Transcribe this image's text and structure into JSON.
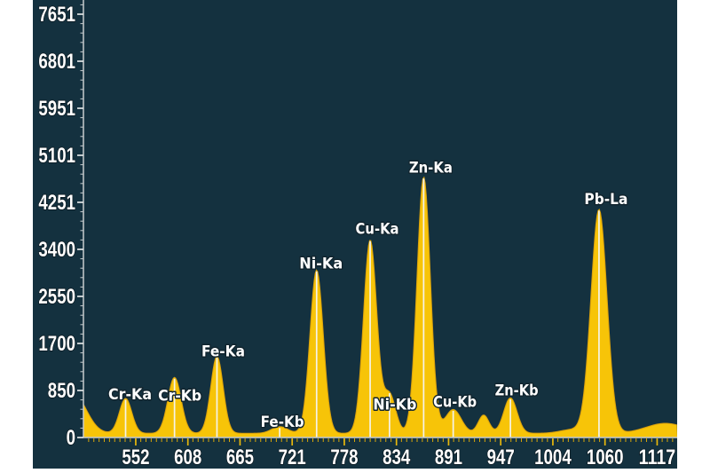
{
  "chart_data": {
    "type": "area",
    "description": "X-ray fluorescence energy spectrum with labeled element emission peaks",
    "x_tick_labels": [
      "552",
      "608",
      "665",
      "721",
      "778",
      "834",
      "891",
      "947",
      "1004",
      "1060",
      "1117"
    ],
    "y_tick_labels": [
      "0",
      "850",
      "1700",
      "2550",
      "3400",
      "4251",
      "5101",
      "5951",
      "6801",
      "7651"
    ],
    "x_axis_range_channels": [
      495.3,
      1138.7
    ],
    "y_axis_range_counts": [
      0,
      7907
    ],
    "background_counts": 75,
    "peaks": [
      {
        "label": "",
        "channel": 485,
        "amplitude": 700,
        "sigma": 13.5,
        "peak_counts": 775
      },
      {
        "label": "Cr-Ka",
        "channel": 541,
        "amplitude": 630,
        "sigma": 6.7,
        "peak_counts": 705,
        "label_dx": 5,
        "label_dy": -5
      },
      {
        "label": "Cr-Kb",
        "channel": 594,
        "amplitude": 1010,
        "sigma": 7.2,
        "peak_counts": 1090,
        "label_dx": 6,
        "label_dy": 20
      },
      {
        "label": "Fe-Ka",
        "channel": 640,
        "amplitude": 1390,
        "sigma": 6.7,
        "peak_counts": 1460,
        "label_dx": 7,
        "label_dy": -6
      },
      {
        "label": "Fe-Kb",
        "channel": 708,
        "amplitude": 120,
        "sigma": 8.7,
        "peak_counts": 195,
        "label_dx": 3,
        "label_dy": -6
      },
      {
        "label": "Ni-Ka",
        "channel": 748,
        "amplitude": 2950,
        "sigma": 7.2,
        "peak_counts": 3015,
        "label_dx": 5,
        "label_dy": -8
      },
      {
        "label": "Cu-Ka",
        "channel": 806,
        "amplitude": 3490,
        "sigma": 7.2,
        "peak_counts": 3560,
        "label_dx": 8,
        "label_dy": -13
      },
      {
        "label": "Ni-Kb",
        "channel": 827,
        "amplitude": 700,
        "sigma": 6.7,
        "peak_counts": 835,
        "label_dx": 6,
        "label_dy": 14
      },
      {
        "label": "Zn-Ka",
        "channel": 864,
        "amplitude": 4630,
        "sigma": 7.2,
        "peak_counts": 4700,
        "label_dx": 8,
        "label_dy": -11
      },
      {
        "label": "Cu-Kb",
        "channel": 896,
        "amplitude": 430,
        "sigma": 8.7,
        "peak_counts": 500,
        "label_dx": 2,
        "label_dy": -9
      },
      {
        "label": "",
        "channel": 929,
        "amplitude": 330,
        "sigma": 5.8,
        "peak_counts": 405
      },
      {
        "label": "Zn-Kb",
        "channel": 958,
        "amplitude": 640,
        "sigma": 7.2,
        "peak_counts": 705,
        "label_dx": 7,
        "label_dy": -9
      },
      {
        "label": "",
        "channel": 1026,
        "amplitude": 70,
        "sigma": 13.5,
        "peak_counts": 145
      },
      {
        "label": "Pb-La",
        "channel": 1054,
        "amplitude": 4040,
        "sigma": 8.7,
        "peak_counts": 4105,
        "label_dx": 8,
        "label_dy": -12
      },
      {
        "label": "",
        "channel": 1126,
        "amplitude": 180,
        "sigma": 21,
        "peak_counts": 255
      }
    ],
    "grid": false,
    "legend": "none",
    "colors": {
      "page_background": "#ffffff",
      "panel_background": "#14313f",
      "spectrum_fill": "#f7c408",
      "spectrum_edge": "#e5a90a",
      "peak_marker_line": "#f5f3e8",
      "axis_line": "#c7ccce",
      "y_tick": "#c3cacd",
      "x_tick": "#d8a708",
      "tick_label_text": "#ffffff",
      "peak_label_text": "#ffffff"
    }
  }
}
